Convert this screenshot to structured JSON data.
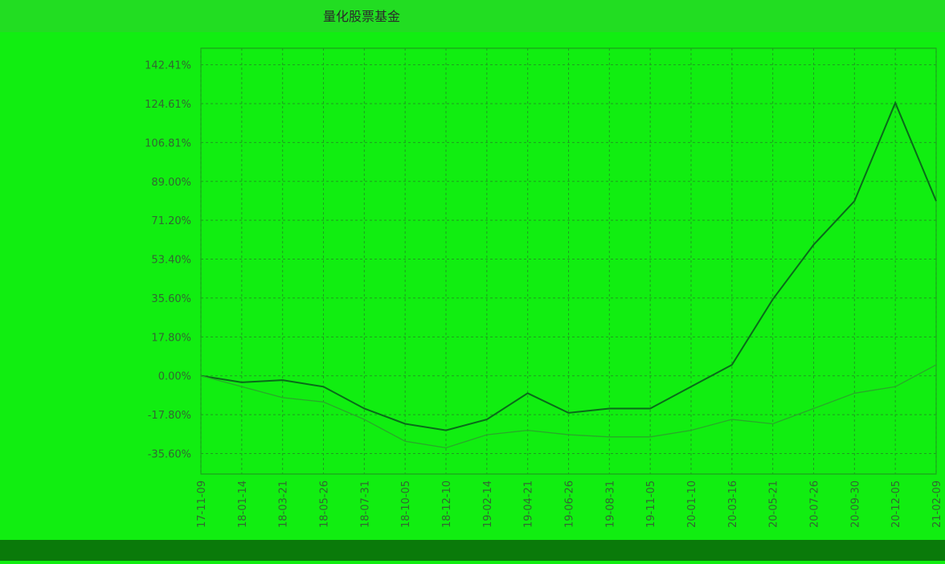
{
  "chart_data": {
    "type": "line",
    "title": "量化股票基金",
    "categories": [
      "17-11-09",
      "18-01-14",
      "18-03-21",
      "18-05-26",
      "18-07-31",
      "18-10-05",
      "18-12-10",
      "19-02-14",
      "19-04-21",
      "19-06-26",
      "19-08-31",
      "19-11-05",
      "20-01-10",
      "20-03-16",
      "20-05-21",
      "20-07-26",
      "20-09-30",
      "20-12-05",
      "21-02-09"
    ],
    "series": [
      {
        "color": "#0a6a1a",
        "values": [
          0,
          -3,
          -2,
          -5,
          -15,
          -22,
          -25,
          -20,
          -8,
          -17,
          -15,
          -15,
          -5,
          5,
          35,
          60,
          80,
          125,
          80
        ]
      },
      {
        "color": "#2aa82a",
        "values": [
          0,
          -5,
          -10,
          -12,
          -20,
          -30,
          -33,
          -27,
          -25,
          -27,
          -28,
          -28,
          -25,
          -20,
          -22,
          -15,
          -8,
          -5,
          5
        ]
      }
    ],
    "ylim": [
      -45,
      150
    ],
    "yticks": [
      {
        "value": -35.6,
        "label": "-35.60%"
      },
      {
        "value": -17.8,
        "label": "-17.80%"
      },
      {
        "value": 0,
        "label": "0.00%"
      },
      {
        "value": 17.8,
        "label": "17.80%"
      },
      {
        "value": 35.6,
        "label": "35.60%"
      },
      {
        "value": 53.4,
        "label": "53.40%"
      },
      {
        "value": 71.2,
        "label": "71.20%"
      },
      {
        "value": 89.0,
        "label": "89.00%"
      },
      {
        "value": 106.81,
        "label": "106.81%"
      },
      {
        "value": 124.61,
        "label": "124.61%"
      },
      {
        "value": 142.41,
        "label": "142.41%"
      }
    ],
    "grid": true
  }
}
